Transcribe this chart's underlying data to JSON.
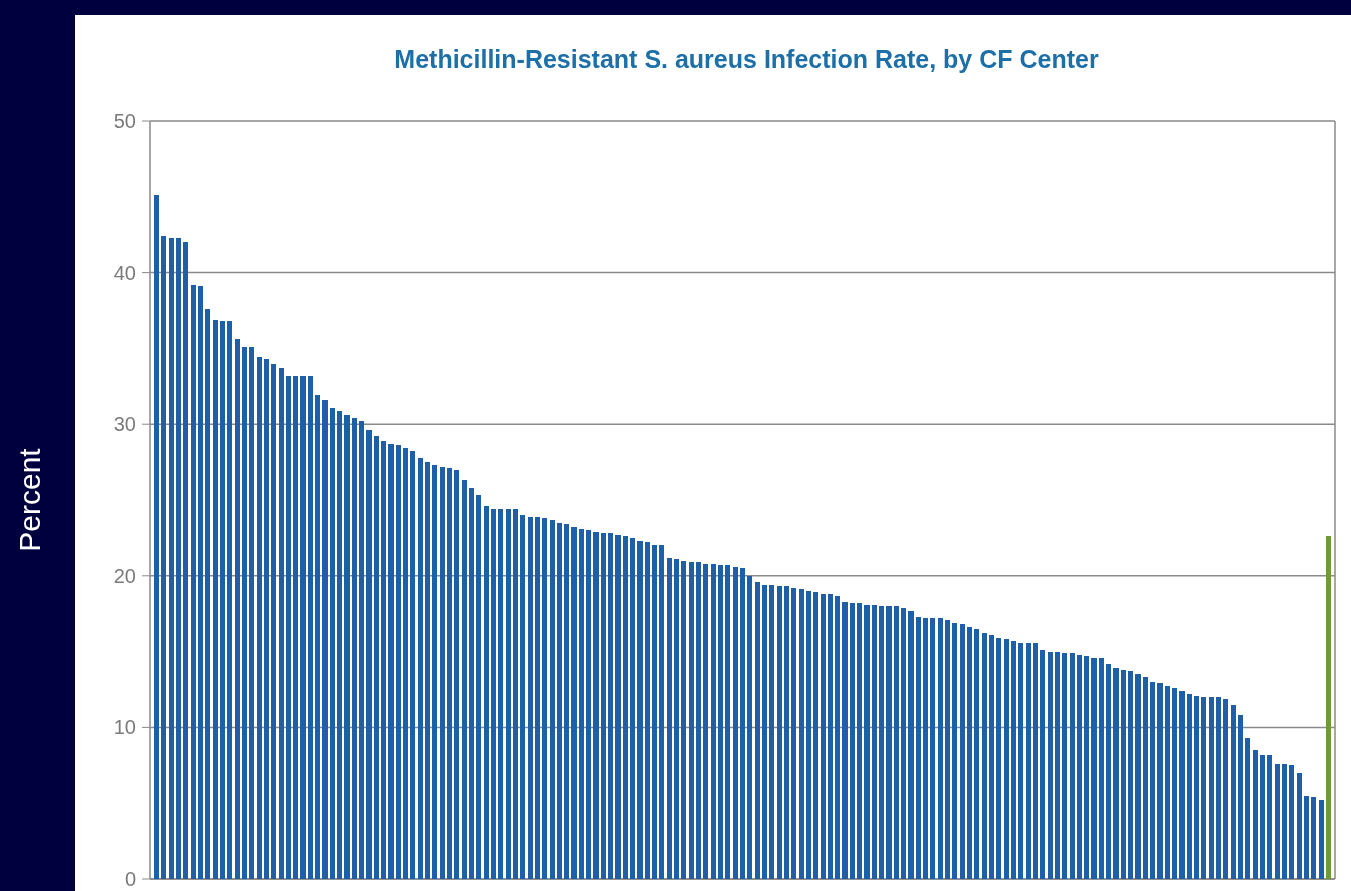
{
  "chart_data": {
    "type": "bar",
    "title": "Methicillin-Resistant S. aureus Infection Rate, by CF Center",
    "ylabel": "Percent",
    "categories": [
      null,
      null,
      null,
      null,
      null,
      null,
      null,
      null,
      null,
      null,
      null,
      null,
      null,
      null,
      null,
      null,
      null,
      null,
      null,
      null,
      null,
      null,
      null,
      null,
      null,
      null,
      null,
      null,
      null,
      null,
      null,
      null,
      null,
      null,
      null,
      null,
      null,
      null,
      null,
      null,
      null,
      null,
      null,
      null,
      null,
      null,
      null,
      null,
      null,
      null,
      null,
      null,
      null,
      null,
      null,
      null,
      null,
      null,
      null,
      null,
      null,
      null,
      null,
      null,
      null,
      null,
      null,
      null,
      null,
      null,
      null,
      null,
      null,
      null,
      null,
      null,
      null,
      null,
      null,
      null,
      null,
      null,
      null,
      null,
      null,
      null,
      null,
      null,
      null,
      null,
      null,
      null,
      null,
      null,
      null,
      null,
      null,
      null,
      null,
      null,
      null,
      null,
      null,
      null,
      null,
      null,
      null,
      null,
      null,
      null,
      null,
      null,
      null,
      null,
      null,
      null,
      null,
      null,
      null,
      null,
      null,
      null,
      null,
      null,
      null,
      null,
      null,
      null,
      null,
      null,
      null,
      null,
      null,
      null,
      null,
      null,
      null,
      null,
      null,
      null,
      null,
      null,
      null,
      null,
      null,
      null,
      null,
      null,
      null,
      null,
      null,
      null,
      null,
      null,
      null,
      null,
      null,
      null,
      null,
      null,
      null
    ],
    "values": [
      45.1,
      42.4,
      42.3,
      42.3,
      42.0,
      39.2,
      39.1,
      37.6,
      36.9,
      36.8,
      36.8,
      35.6,
      35.1,
      35.1,
      34.4,
      34.3,
      34.0,
      33.7,
      33.2,
      33.2,
      33.2,
      33.2,
      31.9,
      31.6,
      31.1,
      30.9,
      30.6,
      30.4,
      30.2,
      29.6,
      29.2,
      28.9,
      28.7,
      28.6,
      28.4,
      28.2,
      27.8,
      27.5,
      27.3,
      27.2,
      27.1,
      27.0,
      26.3,
      25.8,
      25.3,
      24.6,
      24.4,
      24.4,
      24.4,
      24.4,
      24.0,
      23.9,
      23.9,
      23.8,
      23.7,
      23.5,
      23.4,
      23.2,
      23.1,
      23.0,
      22.9,
      22.8,
      22.8,
      22.7,
      22.6,
      22.5,
      22.3,
      22.2,
      22.0,
      22.0,
      21.2,
      21.1,
      21.0,
      20.9,
      20.9,
      20.8,
      20.8,
      20.7,
      20.7,
      20.6,
      20.5,
      20.0,
      19.6,
      19.4,
      19.4,
      19.3,
      19.3,
      19.2,
      19.1,
      19.0,
      18.9,
      18.8,
      18.8,
      18.7,
      18.3,
      18.2,
      18.2,
      18.1,
      18.1,
      18.0,
      18.0,
      18.0,
      17.9,
      17.7,
      17.3,
      17.2,
      17.2,
      17.2,
      17.1,
      16.9,
      16.8,
      16.6,
      16.5,
      16.2,
      16.1,
      15.9,
      15.8,
      15.7,
      15.6,
      15.6,
      15.6,
      15.1,
      15.0,
      15.0,
      14.9,
      14.9,
      14.8,
      14.7,
      14.6,
      14.6,
      14.2,
      13.9,
      13.8,
      13.7,
      13.5,
      13.3,
      13.0,
      12.9,
      12.7,
      12.6,
      12.4,
      12.2,
      12.1,
      12.0,
      12.0,
      12.0,
      11.9,
      11.5,
      10.8,
      9.3,
      8.5,
      8.2,
      8.2,
      7.6,
      7.6,
      7.5,
      7.0,
      5.5,
      5.4,
      5.2,
      22.6
    ],
    "colors": [
      "#1f5fa8",
      "#1f5fa8",
      "#1f5fa8",
      "#1f5fa8",
      "#1f5fa8",
      "#1f5fa8",
      "#1f5fa8",
      "#1f5fa8",
      "#1f5fa8",
      "#1f5fa8",
      "#1f5fa8",
      "#1f5fa8",
      "#1f5fa8",
      "#1f5fa8",
      "#1f5fa8",
      "#1f5fa8",
      "#1f5fa8",
      "#1f5fa8",
      "#1f5fa8",
      "#1f5fa8",
      "#1f5fa8",
      "#1f5fa8",
      "#1f5fa8",
      "#1f5fa8",
      "#1f5fa8",
      "#1f5fa8",
      "#1f5fa8",
      "#1f5fa8",
      "#1f5fa8",
      "#1f5fa8",
      "#1f5fa8",
      "#1f5fa8",
      "#1f5fa8",
      "#1f5fa8",
      "#1f5fa8",
      "#1f5fa8",
      "#1f5fa8",
      "#1f5fa8",
      "#1f5fa8",
      "#1f5fa8",
      "#1f5fa8",
      "#1f5fa8",
      "#1f5fa8",
      "#1f5fa8",
      "#1f5fa8",
      "#1f5fa8",
      "#1f5fa8",
      "#1f5fa8",
      "#1f5fa8",
      "#1f5fa8",
      "#1f5fa8",
      "#1f5fa8",
      "#1f5fa8",
      "#1f5fa8",
      "#1f5fa8",
      "#1f5fa8",
      "#1f5fa8",
      "#1f5fa8",
      "#1f5fa8",
      "#1f5fa8",
      "#1f5fa8",
      "#1f5fa8",
      "#1f5fa8",
      "#1f5fa8",
      "#1f5fa8",
      "#1f5fa8",
      "#1f5fa8",
      "#1f5fa8",
      "#1f5fa8",
      "#1f5fa8",
      "#1f5fa8",
      "#1f5fa8",
      "#1f5fa8",
      "#1f5fa8",
      "#1f5fa8",
      "#1f5fa8",
      "#1f5fa8",
      "#1f5fa8",
      "#1f5fa8",
      "#1f5fa8",
      "#1f5fa8",
      "#1f5fa8",
      "#1f5fa8",
      "#1f5fa8",
      "#1f5fa8",
      "#1f5fa8",
      "#1f5fa8",
      "#1f5fa8",
      "#1f5fa8",
      "#1f5fa8",
      "#1f5fa8",
      "#1f5fa8",
      "#1f5fa8",
      "#1f5fa8",
      "#1f5fa8",
      "#1f5fa8",
      "#1f5fa8",
      "#1f5fa8",
      "#1f5fa8",
      "#1f5fa8",
      "#1f5fa8",
      "#1f5fa8",
      "#1f5fa8",
      "#1f5fa8",
      "#1f5fa8",
      "#1f5fa8",
      "#1f5fa8",
      "#1f5fa8",
      "#1f5fa8",
      "#1f5fa8",
      "#1f5fa8",
      "#1f5fa8",
      "#1f5fa8",
      "#1f5fa8",
      "#1f5fa8",
      "#1f5fa8",
      "#1f5fa8",
      "#1f5fa8",
      "#1f5fa8",
      "#1f5fa8",
      "#1f5fa8",
      "#1f5fa8",
      "#1f5fa8",
      "#1f5fa8",
      "#1f5fa8",
      "#1f5fa8",
      "#1f5fa8",
      "#1f5fa8",
      "#1f5fa8",
      "#1f5fa8",
      "#1f5fa8",
      "#1f5fa8",
      "#1f5fa8",
      "#1f5fa8",
      "#1f5fa8",
      "#1f5fa8",
      "#1f5fa8",
      "#1f5fa8",
      "#1f5fa8",
      "#1f5fa8",
      "#1f5fa8",
      "#1f5fa8",
      "#1f5fa8",
      "#1f5fa8",
      "#1f5fa8",
      "#1f5fa8",
      "#1f5fa8",
      "#1f5fa8",
      "#1f5fa8",
      "#1f5fa8",
      "#1f5fa8",
      "#1f5fa8",
      "#1f5fa8",
      "#1f5fa8",
      "#1f5fa8",
      "#1f5fa8",
      "#1f5fa8",
      "#1f5fa8",
      "#1f5fa8",
      "#1f5fa8",
      "#6e9a3a"
    ],
    "ylim": [
      0,
      50
    ],
    "yticks": [
      0,
      10,
      20,
      30,
      40,
      50
    ],
    "grid": "y"
  }
}
